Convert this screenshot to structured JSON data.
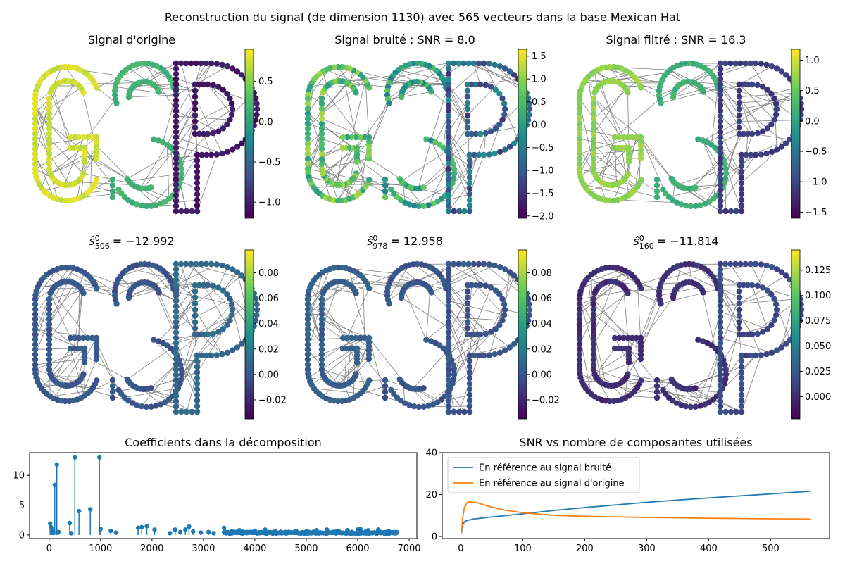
{
  "figure": {
    "suptitle": "Reconstruction du signal (de dimension 1130) avec 565 vecteurs dans la base Mexican Hat"
  },
  "colors": {
    "edge": "#808080",
    "stem": "#1f77b4",
    "series_noisy": "#1f77b4",
    "series_original": "#ff7f0e",
    "viridis": [
      "#440154",
      "#3b528b",
      "#21918c",
      "#5ec962",
      "#fde725"
    ]
  },
  "chart_data": [
    {
      "type": "heatmap",
      "title": "Signal d'origine",
      "graph_letters": "GSP",
      "colorbar": {
        "min": -1.2,
        "max": 0.9,
        "ticks": [
          -1.0,
          -0.5,
          0.0,
          0.5
        ],
        "tick_labels": [
          "−1.0",
          "−0.5",
          "0.0",
          "0.5"
        ]
      },
      "letter_values": {
        "G": 0.75,
        "S": 0.15,
        "P": -1.05
      }
    },
    {
      "type": "heatmap",
      "title": "Signal bruité : SNR = 8.0",
      "graph_letters": "GSP",
      "colorbar": {
        "min": -2.05,
        "max": 1.65,
        "ticks": [
          -2.0,
          -1.5,
          -1.0,
          -0.5,
          0.0,
          0.5,
          1.0,
          1.5
        ],
        "tick_labels": [
          "−2.0",
          "−1.5",
          "−1.0",
          "−0.5",
          "0.0",
          "0.5",
          "1.0",
          "1.5"
        ]
      },
      "letter_values": {
        "G": 0.55,
        "S": 0.1,
        "P": -0.9
      }
    },
    {
      "type": "heatmap",
      "title": "Signal filtré : SNR = 16.3",
      "graph_letters": "GSP",
      "colorbar": {
        "min": -1.6,
        "max": 1.18,
        "ticks": [
          -1.5,
          -1.0,
          -0.5,
          0.0,
          0.5,
          1.0
        ],
        "tick_labels": [
          "−1.5",
          "−1.0",
          "−0.5",
          "0.0",
          "0.5",
          "1.0"
        ]
      },
      "letter_values": {
        "G": 0.7,
        "S": 0.15,
        "P": -1.1
      }
    },
    {
      "type": "heatmap",
      "title_prefix": "ŝ",
      "sup": "0",
      "sub": "506",
      "title_value": "= −12.992",
      "graph_letters": "GSP",
      "colorbar": {
        "min": -0.035,
        "max": 0.098,
        "ticks": [
          -0.02,
          0.0,
          0.02,
          0.04,
          0.06,
          0.08
        ],
        "tick_labels": [
          "−0.02",
          "0.00",
          "0.02",
          "0.04",
          "0.06",
          "0.08"
        ]
      },
      "letter_values": {
        "G": 0.002,
        "S": 0.0,
        "P": 0.01
      }
    },
    {
      "type": "heatmap",
      "title_prefix": "ŝ",
      "sup": "0",
      "sub": "978",
      "title_value": "= 12.958",
      "graph_letters": "GSP",
      "colorbar": {
        "min": -0.035,
        "max": 0.098,
        "ticks": [
          -0.02,
          0.0,
          0.02,
          0.04,
          0.06,
          0.08
        ],
        "tick_labels": [
          "−0.02",
          "0.00",
          "0.02",
          "0.04",
          "0.06",
          "0.08"
        ]
      },
      "letter_values": {
        "G": 0.005,
        "S": 0.0,
        "P": 0.0
      }
    },
    {
      "type": "heatmap",
      "title_prefix": "ŝ",
      "sup": "0",
      "sub": "160",
      "title_value": "= −11.814",
      "graph_letters": "GSP",
      "colorbar": {
        "min": -0.022,
        "max": 0.145,
        "ticks": [
          0.0,
          0.025,
          0.05,
          0.075,
          0.1,
          0.125
        ],
        "tick_labels": [
          "0.000",
          "0.025",
          "0.050",
          "0.075",
          "0.100",
          "0.125"
        ]
      },
      "letter_values": {
        "G": 0.0,
        "S": 0.002,
        "P": 0.015
      }
    },
    {
      "type": "bar",
      "subtype": "stem",
      "title": "Coefficients dans la décomposition",
      "xlim": [
        -380,
        7150
      ],
      "ylim": [
        -0.6,
        13.8
      ],
      "xticks": [
        0,
        1000,
        2000,
        3000,
        4000,
        5000,
        6000,
        7000
      ],
      "yticks": [
        0,
        5,
        10
      ],
      "stems": [
        [
          20,
          1.9
        ],
        [
          40,
          1.3
        ],
        [
          60,
          0.8
        ],
        [
          80,
          0.4
        ],
        [
          110,
          8.4
        ],
        [
          150,
          11.8
        ],
        [
          180,
          0.5
        ],
        [
          400,
          2.0
        ],
        [
          430,
          0.3
        ],
        [
          500,
          13.0
        ],
        [
          580,
          4.0
        ],
        [
          800,
          4.3
        ],
        [
          978,
          13.0
        ],
        [
          1000,
          1.0
        ],
        [
          1200,
          0.7
        ],
        [
          1300,
          0.4
        ],
        [
          1730,
          1.2
        ],
        [
          1800,
          1.3
        ],
        [
          1900,
          1.5
        ],
        [
          2050,
          0.9
        ],
        [
          2350,
          0.3
        ],
        [
          2450,
          0.9
        ],
        [
          2550,
          0.5
        ],
        [
          2650,
          0.9
        ],
        [
          2720,
          1.4
        ],
        [
          2800,
          0.6
        ],
        [
          2950,
          0.4
        ],
        [
          3100,
          0.5
        ],
        [
          3200,
          0.3
        ],
        [
          3400,
          1.2
        ],
        [
          3550,
          0.6
        ],
        [
          3700,
          0.8
        ],
        [
          3850,
          0.5
        ],
        [
          4000,
          0.7
        ],
        [
          4200,
          0.9
        ],
        [
          4400,
          0.6
        ],
        [
          4600,
          0.5
        ],
        [
          4800,
          0.7
        ],
        [
          5000,
          0.6
        ],
        [
          5200,
          0.8
        ],
        [
          5400,
          0.9
        ],
        [
          5600,
          0.7
        ],
        [
          5800,
          0.8
        ],
        [
          6000,
          0.9
        ],
        [
          6050,
          1.0
        ],
        [
          6200,
          0.8
        ],
        [
          6400,
          0.9
        ],
        [
          6600,
          0.7
        ],
        [
          6750,
          0.5
        ]
      ],
      "dense_band": [
        3400,
        6780
      ]
    },
    {
      "type": "line",
      "title": "SNR vs nombre de composantes utilisées",
      "xlim": [
        -30,
        595
      ],
      "ylim": [
        -1,
        40
      ],
      "xticks": [
        0,
        100,
        200,
        300,
        400,
        500
      ],
      "yticks": [
        0,
        20,
        40
      ],
      "legend_position": "upper-left",
      "series": [
        {
          "name": "En référence au signal bruité",
          "x": [
            1,
            3,
            6,
            10,
            20,
            40,
            60,
            100,
            150,
            200,
            300,
            400,
            500,
            565
          ],
          "y": [
            1.5,
            5.5,
            7.0,
            7.6,
            8.3,
            9.0,
            9.6,
            10.8,
            12.4,
            13.8,
            16.3,
            18.4,
            20.3,
            21.6
          ]
        },
        {
          "name": "En référence au signal d'origine",
          "x": [
            1,
            3,
            6,
            10,
            14,
            18,
            25,
            35,
            50,
            70,
            100,
            150,
            200,
            300,
            400,
            500,
            565
          ],
          "y": [
            1.5,
            9.0,
            14.0,
            16.0,
            16.6,
            16.3,
            16.2,
            15.3,
            14.0,
            12.6,
            11.3,
            10.1,
            9.6,
            9.1,
            8.7,
            8.4,
            8.3
          ]
        }
      ]
    }
  ]
}
